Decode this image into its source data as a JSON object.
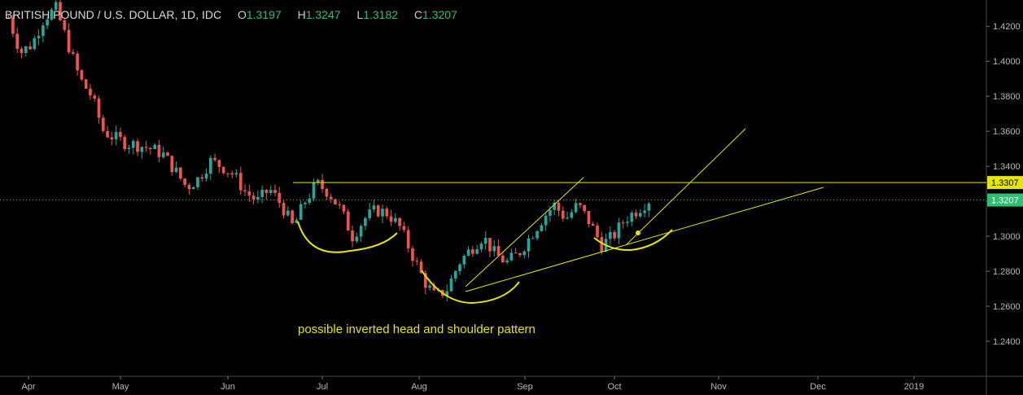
{
  "header": {
    "symbol": "BRITISH POUND / U.S. DOLLAR, 1D, IDC",
    "open_label": "O",
    "open": "1.3197",
    "high_label": "H",
    "high": "1.3247",
    "low_label": "L",
    "low": "1.3182",
    "close_label": "C",
    "close": "1.3207"
  },
  "annotation": "possible inverted head and shoulder pattern",
  "colors": {
    "up": "#26a69a",
    "down": "#ef5350",
    "drawing": "#e6e600",
    "close_tag": "#2fbf71",
    "resistance_tag": "#e6e600"
  },
  "chart_data": {
    "type": "candlestick",
    "x_labels": [
      "Apr",
      "May",
      "Jun",
      "Jul",
      "Aug",
      "Sep",
      "Oct",
      "Nov",
      "Dec",
      "2019"
    ],
    "y_ticks": [
      "1.4200",
      "1.4000",
      "1.3800",
      "1.3600",
      "1.3400",
      "1.3200",
      "1.3000",
      "1.2800",
      "1.2600",
      "1.2400"
    ],
    "y_range": [
      1.22,
      1.435
    ],
    "resistance_level": "1.3307",
    "last_close_level": "1.3207",
    "close_path": [
      1.425,
      1.405,
      1.41,
      1.425,
      1.43,
      1.41,
      1.39,
      1.38,
      1.36,
      1.356,
      1.353,
      1.352,
      1.35,
      1.347,
      1.338,
      1.328,
      1.333,
      1.343,
      1.34,
      1.335,
      1.325,
      1.32,
      1.327,
      1.318,
      1.305,
      1.32,
      1.33,
      1.325,
      1.315,
      1.3,
      1.31,
      1.315,
      1.313,
      1.305,
      1.29,
      1.275,
      1.265,
      1.27,
      1.285,
      1.293,
      1.3,
      1.29,
      1.285,
      1.29,
      1.3,
      1.31,
      1.318,
      1.31,
      1.318,
      1.308,
      1.295,
      1.3,
      1.31,
      1.315,
      1.3207
    ]
  }
}
